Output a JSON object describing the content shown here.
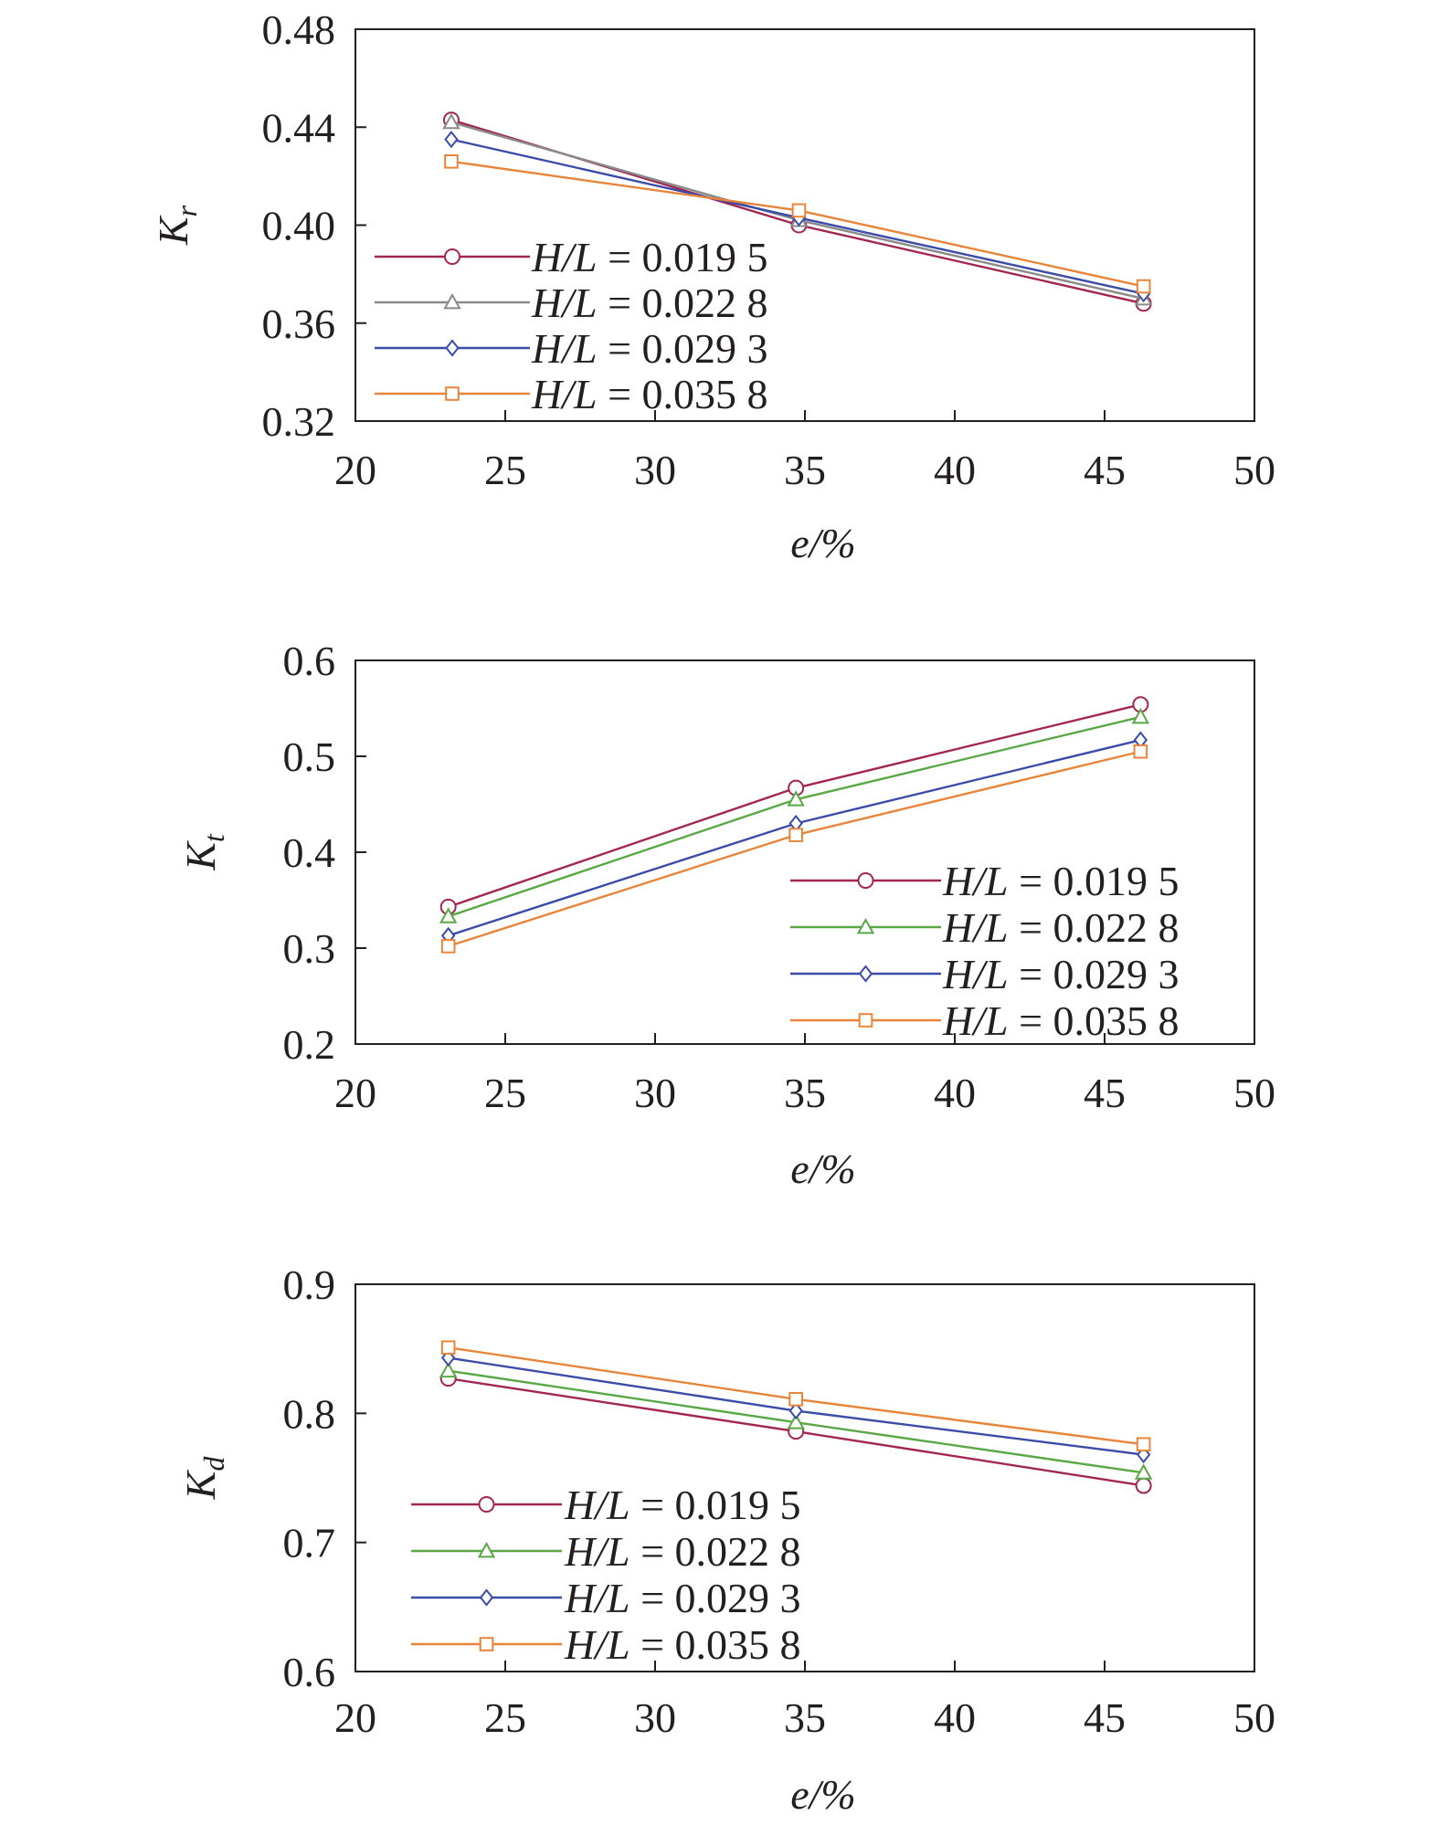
{
  "chart_data": [
    {
      "type": "line",
      "title": "",
      "xlabel": "e/%",
      "ylabel": "K_r",
      "ylabel_main": "K",
      "ylabel_sub": "r",
      "xlim": [
        20,
        50
      ],
      "ylim": [
        0.32,
        0.48
      ],
      "xticks": [
        20,
        25,
        30,
        35,
        40,
        45,
        50
      ],
      "yticks": [
        0.32,
        0.36,
        0.4,
        0.44,
        0.48
      ],
      "ytick_labels": [
        "0.32",
        "0.36",
        "0.40",
        "0.44",
        "0.48"
      ],
      "legend_position": "bottom-left",
      "grid": false,
      "x": [
        23.2,
        34.8,
        46.3
      ],
      "series": [
        {
          "name": "H/L = 0.019 5",
          "name_var": "H/L",
          "name_value": " = 0.019 5",
          "values": [
            0.443,
            0.4,
            0.368
          ],
          "color": "#a3264f",
          "marker": "circle"
        },
        {
          "name": "H/L = 0.022 8",
          "name_var": "H/L",
          "name_value": " = 0.022 8",
          "values": [
            0.442,
            0.402,
            0.37
          ],
          "color": "#8a8a8a",
          "marker": "triangle"
        },
        {
          "name": "H/L = 0.029 3",
          "name_var": "H/L",
          "name_value": " = 0.029 3",
          "values": [
            0.435,
            0.403,
            0.372
          ],
          "color": "#3b4ca8",
          "marker": "diamond"
        },
        {
          "name": "H/L = 0.035 8",
          "name_var": "H/L",
          "name_value": " = 0.035 8",
          "values": [
            0.426,
            0.406,
            0.375
          ],
          "color": "#e8853a",
          "marker": "square"
        }
      ]
    },
    {
      "type": "line",
      "title": "",
      "xlabel": "e/%",
      "ylabel": "K_t",
      "ylabel_main": "K",
      "ylabel_sub": "t",
      "xlim": [
        20,
        50
      ],
      "ylim": [
        0.2,
        0.6
      ],
      "xticks": [
        20,
        25,
        30,
        35,
        40,
        45,
        50
      ],
      "yticks": [
        0.2,
        0.3,
        0.4,
        0.5,
        0.6
      ],
      "ytick_labels": [
        "0.2",
        "0.3",
        "0.4",
        "0.5",
        "0.6"
      ],
      "legend_position": "bottom-right",
      "grid": false,
      "x": [
        23.1,
        34.7,
        46.2
      ],
      "series": [
        {
          "name": "H/L = 0.019 5",
          "name_var": "H/L",
          "name_value": " = 0.019 5",
          "values": [
            0.343,
            0.467,
            0.554
          ],
          "color": "#a3264f",
          "marker": "circle"
        },
        {
          "name": "H/L = 0.022 8",
          "name_var": "H/L",
          "name_value": " = 0.022 8",
          "values": [
            0.333,
            0.455,
            0.541
          ],
          "color": "#5aa845",
          "marker": "triangle"
        },
        {
          "name": "H/L = 0.029 3",
          "name_var": "H/L",
          "name_value": " = 0.029 3",
          "values": [
            0.313,
            0.43,
            0.517
          ],
          "color": "#3b4ca8",
          "marker": "diamond"
        },
        {
          "name": "H/L = 0.035 8",
          "name_var": "H/L",
          "name_value": " = 0.035 8",
          "values": [
            0.302,
            0.418,
            0.505
          ],
          "color": "#e8853a",
          "marker": "square"
        }
      ]
    },
    {
      "type": "line",
      "title": "",
      "xlabel": "e/%",
      "ylabel": "K_d",
      "ylabel_main": "K",
      "ylabel_sub": "d",
      "xlim": [
        20,
        50
      ],
      "ylim": [
        0.6,
        0.9
      ],
      "xticks": [
        20,
        25,
        30,
        35,
        40,
        45,
        50
      ],
      "yticks": [
        0.6,
        0.7,
        0.8,
        0.9
      ],
      "ytick_labels": [
        "0.6",
        "0.7",
        "0.8",
        "0.9"
      ],
      "legend_position": "bottom-left",
      "grid": false,
      "x": [
        23.1,
        34.7,
        46.3
      ],
      "series": [
        {
          "name": "H/L = 0.019 5",
          "name_var": "H/L",
          "name_value": " = 0.019 5",
          "values": [
            0.827,
            0.786,
            0.744
          ],
          "color": "#a3264f",
          "marker": "circle"
        },
        {
          "name": "H/L = 0.022 8",
          "name_var": "H/L",
          "name_value": " = 0.022 8",
          "values": [
            0.833,
            0.793,
            0.754
          ],
          "color": "#5aa845",
          "marker": "triangle"
        },
        {
          "name": "H/L = 0.029 3",
          "name_var": "H/L",
          "name_value": " = 0.029 3",
          "values": [
            0.843,
            0.802,
            0.768
          ],
          "color": "#3b4ca8",
          "marker": "diamond"
        },
        {
          "name": "H/L = 0.035 8",
          "name_var": "H/L",
          "name_value": " = 0.035 8",
          "values": [
            0.851,
            0.811,
            0.776
          ],
          "color": "#e8853a",
          "marker": "square"
        }
      ]
    }
  ]
}
